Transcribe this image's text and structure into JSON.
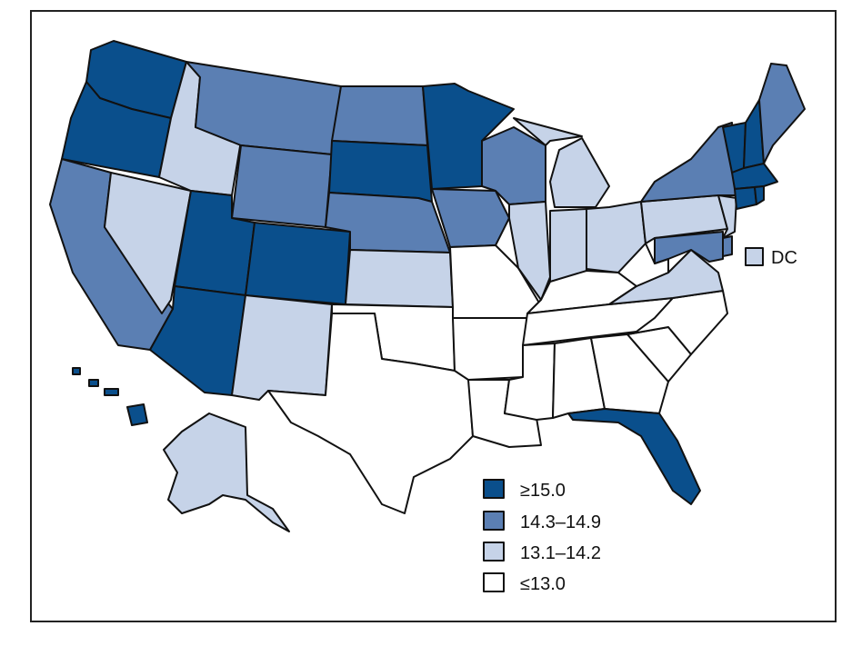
{
  "colors": {
    "ge15": "#0a4f8c",
    "r143_149": "#5b7fb3",
    "r131_142": "#c6d3e8",
    "le13": "#ffffff"
  },
  "states": {
    "WA": "ge15",
    "OR": "ge15",
    "CA": "r143_149",
    "NV": "r131_142",
    "ID": "r131_142",
    "MT": "r143_149",
    "WY": "r143_149",
    "UT": "ge15",
    "AZ": "ge15",
    "CO": "ge15",
    "NM": "r131_142",
    "ND": "r143_149",
    "SD": "ge15",
    "NE": "r143_149",
    "KS": "r131_142",
    "OK": "le13",
    "TX": "le13",
    "MN": "ge15",
    "IA": "r143_149",
    "MO": "le13",
    "AR": "le13",
    "LA": "le13",
    "WI": "r143_149",
    "IL": "r131_142",
    "MI": "r131_142",
    "IN": "r131_142",
    "OH": "r131_142",
    "KY": "le13",
    "TN": "le13",
    "MS": "le13",
    "AL": "le13",
    "GA": "le13",
    "FL": "ge15",
    "SC": "le13",
    "NC": "le13",
    "VA": "r131_142",
    "WV": "le13",
    "PA": "r131_142",
    "NY": "r143_149",
    "NJ": "r131_142",
    "DE": "r143_149",
    "MD": "r143_149",
    "VT": "ge15",
    "NH": "ge15",
    "ME": "r143_149",
    "MA": "ge15",
    "CT": "ge15",
    "RI": "ge15",
    "AK": "r131_142",
    "HI": "ge15",
    "DC": "r131_142"
  },
  "dc_label": "DC",
  "legend": [
    {
      "label": "≥15.0",
      "class": "ge15"
    },
    {
      "label": "14.3–14.9",
      "class": "r143_149"
    },
    {
      "label": "13.1–14.2",
      "class": "r131_142"
    },
    {
      "label": "≤13.0",
      "class": "le13"
    }
  ]
}
